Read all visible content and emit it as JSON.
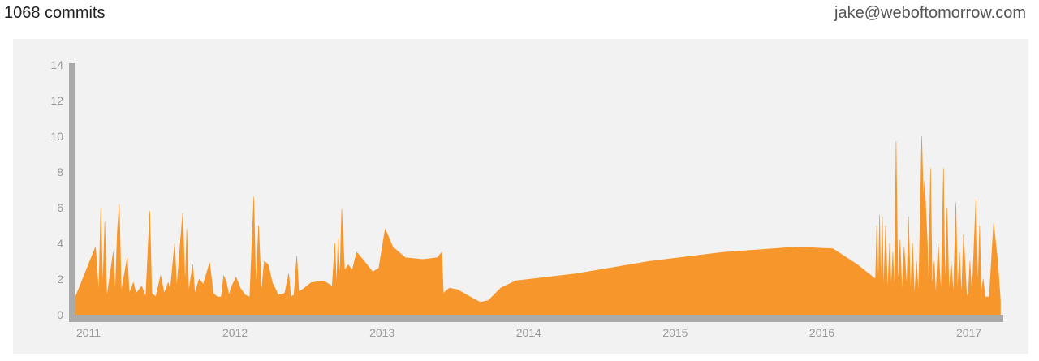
{
  "header": {
    "commits_text": "1068 commits",
    "email": "jake@weboftomorrow.com"
  },
  "colors": {
    "area": "#f7962b",
    "axis": "#aaaaaa",
    "panel": "#f2f2f2"
  },
  "chart_data": {
    "type": "area",
    "title": "",
    "xlabel": "",
    "ylabel": "",
    "ylim": [
      0,
      14
    ],
    "xlim": [
      "2011-01-01",
      "2017-04-25"
    ],
    "y_ticks": [
      0,
      2,
      4,
      6,
      8,
      10,
      12,
      14
    ],
    "x_ticks": [
      "2011",
      "2012",
      "2013",
      "2014",
      "2015",
      "2016",
      "2017"
    ],
    "grid": false,
    "legend": "none",
    "series": [
      {
        "values": [
          [
            "2011-01-01",
            1.0
          ],
          [
            "2011-02-20",
            3.8
          ],
          [
            "2011-02-28",
            1.2
          ],
          [
            "2011-03-05",
            6.0
          ],
          [
            "2011-03-10",
            1.5
          ],
          [
            "2011-03-15",
            5.2
          ],
          [
            "2011-03-20",
            1.0
          ],
          [
            "2011-04-05",
            3.5
          ],
          [
            "2011-04-10",
            1.2
          ],
          [
            "2011-04-15",
            4.6
          ],
          [
            "2011-04-20",
            6.2
          ],
          [
            "2011-04-25",
            1.3
          ],
          [
            "2011-05-10",
            3.2
          ],
          [
            "2011-05-15",
            1.2
          ],
          [
            "2011-05-25",
            1.8
          ],
          [
            "2011-06-01",
            1.2
          ],
          [
            "2011-06-15",
            1.6
          ],
          [
            "2011-06-25",
            1.0
          ],
          [
            "2011-07-05",
            5.8
          ],
          [
            "2011-07-10",
            1.2
          ],
          [
            "2011-07-20",
            1.0
          ],
          [
            "2011-08-01",
            2.2
          ],
          [
            "2011-08-10",
            1.2
          ],
          [
            "2011-08-20",
            1.8
          ],
          [
            "2011-08-25",
            1.4
          ],
          [
            "2011-09-05",
            4.0
          ],
          [
            "2011-09-10",
            1.5
          ],
          [
            "2011-09-25",
            5.7
          ],
          [
            "2011-10-01",
            1.6
          ],
          [
            "2011-10-05",
            4.8
          ],
          [
            "2011-10-10",
            1.3
          ],
          [
            "2011-10-20",
            2.8
          ],
          [
            "2011-10-25",
            1.2
          ],
          [
            "2011-11-05",
            2.0
          ],
          [
            "2011-11-15",
            1.7
          ],
          [
            "2011-12-01",
            2.9
          ],
          [
            "2011-12-10",
            1.2
          ],
          [
            "2011-12-20",
            1.0
          ],
          [
            "2011-12-30",
            1.0
          ],
          [
            "2012-01-05",
            2.2
          ],
          [
            "2012-01-12",
            1.8
          ],
          [
            "2012-01-18",
            1.1
          ],
          [
            "2012-01-25",
            1.6
          ],
          [
            "2012-02-05",
            2.1
          ],
          [
            "2012-02-15",
            1.5
          ],
          [
            "2012-02-28",
            1.1
          ],
          [
            "2012-03-10",
            1.0
          ],
          [
            "2012-03-20",
            6.6
          ],
          [
            "2012-03-25",
            1.5
          ],
          [
            "2012-04-01",
            5.0
          ],
          [
            "2012-04-08",
            1.3
          ],
          [
            "2012-04-15",
            3.0
          ],
          [
            "2012-04-25",
            2.8
          ],
          [
            "2012-05-05",
            1.8
          ],
          [
            "2012-05-20",
            1.1
          ],
          [
            "2012-06-05",
            1.2
          ],
          [
            "2012-06-15",
            2.3
          ],
          [
            "2012-06-20",
            1.0
          ],
          [
            "2012-06-28",
            1.1
          ],
          [
            "2012-07-05",
            3.3
          ],
          [
            "2012-07-10",
            1.3
          ],
          [
            "2012-07-18",
            1.4
          ],
          [
            "2012-08-10",
            1.8
          ],
          [
            "2012-09-10",
            1.9
          ],
          [
            "2012-10-01",
            1.6
          ],
          [
            "2012-10-08",
            4.0
          ],
          [
            "2012-10-12",
            1.5
          ],
          [
            "2012-10-16",
            4.3
          ],
          [
            "2012-10-20",
            2.0
          ],
          [
            "2012-10-25",
            5.9
          ],
          [
            "2012-11-01",
            2.5
          ],
          [
            "2012-11-10",
            2.8
          ],
          [
            "2012-11-20",
            2.5
          ],
          [
            "2012-12-01",
            3.5
          ],
          [
            "2012-12-20",
            3.0
          ],
          [
            "2013-01-10",
            2.4
          ],
          [
            "2013-01-25",
            2.6
          ],
          [
            "2013-02-10",
            4.8
          ],
          [
            "2013-03-01",
            3.8
          ],
          [
            "2013-04-01",
            3.2
          ],
          [
            "2013-05-15",
            3.1
          ],
          [
            "2013-06-20",
            3.2
          ],
          [
            "2013-07-01",
            3.5
          ],
          [
            "2013-07-05",
            1.2
          ],
          [
            "2013-07-20",
            1.5
          ],
          [
            "2013-08-10",
            1.4
          ],
          [
            "2013-09-10",
            1.0
          ],
          [
            "2013-10-05",
            0.7
          ],
          [
            "2013-10-25",
            0.8
          ],
          [
            "2013-11-25",
            1.5
          ],
          [
            "2014-01-01",
            1.9
          ],
          [
            "2014-06-01",
            2.3
          ],
          [
            "2014-12-01",
            3.0
          ],
          [
            "2015-06-01",
            3.5
          ],
          [
            "2015-12-01",
            3.8
          ],
          [
            "2016-03-01",
            3.7
          ],
          [
            "2016-05-01",
            2.8
          ],
          [
            "2016-06-15",
            2.0
          ],
          [
            "2016-06-18",
            5.0
          ],
          [
            "2016-06-22",
            1.5
          ],
          [
            "2016-06-25",
            5.6
          ],
          [
            "2016-06-28",
            1.5
          ],
          [
            "2016-07-02",
            5.5
          ],
          [
            "2016-07-05",
            1.2
          ],
          [
            "2016-07-10",
            5.0
          ],
          [
            "2016-07-15",
            1.2
          ],
          [
            "2016-07-20",
            4.0
          ],
          [
            "2016-07-24",
            1.5
          ],
          [
            "2016-07-28",
            3.5
          ],
          [
            "2016-08-01",
            1.2
          ],
          [
            "2016-08-05",
            9.7
          ],
          [
            "2016-08-10",
            1.5
          ],
          [
            "2016-08-15",
            4.2
          ],
          [
            "2016-08-20",
            1.2
          ],
          [
            "2016-08-25",
            3.8
          ],
          [
            "2016-09-01",
            1.5
          ],
          [
            "2016-09-05",
            5.5
          ],
          [
            "2016-09-10",
            1.2
          ],
          [
            "2016-09-15",
            4.0
          ],
          [
            "2016-09-20",
            1.0
          ],
          [
            "2016-09-25",
            3.0
          ],
          [
            "2016-09-30",
            1.1
          ],
          [
            "2016-10-05",
            6.5
          ],
          [
            "2016-10-08",
            10.0
          ],
          [
            "2016-10-12",
            6.5
          ],
          [
            "2016-10-15",
            7.5
          ],
          [
            "2016-10-18",
            6.0
          ],
          [
            "2016-10-22",
            4.0
          ],
          [
            "2016-10-25",
            1.5
          ],
          [
            "2016-10-30",
            8.2
          ],
          [
            "2016-11-03",
            1.5
          ],
          [
            "2016-11-08",
            3.0
          ],
          [
            "2016-11-12",
            1.0
          ],
          [
            "2016-11-18",
            4.0
          ],
          [
            "2016-11-25",
            1.2
          ],
          [
            "2016-12-01",
            8.2
          ],
          [
            "2016-12-05",
            1.5
          ],
          [
            "2016-12-10",
            6.0
          ],
          [
            "2016-12-15",
            1.2
          ],
          [
            "2016-12-20",
            3.0
          ],
          [
            "2016-12-26",
            1.1
          ],
          [
            "2017-01-01",
            6.3
          ],
          [
            "2017-01-05",
            1.2
          ],
          [
            "2017-01-10",
            3.5
          ],
          [
            "2017-01-15",
            1.0
          ],
          [
            "2017-01-20",
            4.5
          ],
          [
            "2017-01-28",
            1.0
          ],
          [
            "2017-02-01",
            1.2
          ],
          [
            "2017-02-05",
            3.0
          ],
          [
            "2017-02-10",
            1.0
          ],
          [
            "2017-02-20",
            6.5
          ],
          [
            "2017-02-25",
            1.5
          ],
          [
            "2017-03-01",
            5.0
          ],
          [
            "2017-03-05",
            1.2
          ],
          [
            "2017-03-10",
            2.0
          ],
          [
            "2017-03-15",
            1.0
          ],
          [
            "2017-03-25",
            1.0
          ],
          [
            "2017-04-05",
            5.1
          ],
          [
            "2017-04-15",
            3.0
          ],
          [
            "2017-04-22",
            0.8
          ]
        ]
      }
    ]
  }
}
